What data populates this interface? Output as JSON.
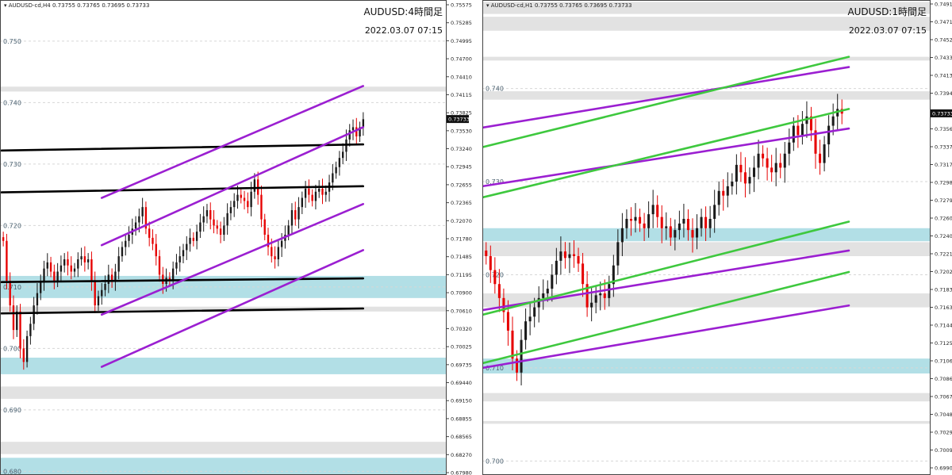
{
  "chart_data": [
    {
      "type": "candlestick",
      "symbol_header": "AUDUSD-cd,H4",
      "ohlc_text": "0.73755 0.73765 0.73695 0.73733",
      "title": "AUDUSD:4時間足",
      "timestamp": "2022.03.07 07:15",
      "current_price": "0.73733",
      "ylim": [
        0.6794,
        0.7567
      ],
      "axis_ticks": [
        "0.75575",
        "0.75285",
        "0.74995",
        "0.74700",
        "0.74410",
        "0.74115",
        "0.73825",
        "0.73530",
        "0.73240",
        "0.72945",
        "0.72655",
        "0.72365",
        "0.72070",
        "0.71780",
        "0.71485",
        "0.71195",
        "0.70900",
        "0.70610",
        "0.70320",
        "0.70025",
        "0.69735",
        "0.69440",
        "0.69150",
        "0.68855",
        "0.68565",
        "0.68270",
        "0.67980"
      ],
      "level_labels": [
        "0.750",
        "0.740",
        "0.730",
        "0.720",
        "0.710",
        "0.700",
        "0.690",
        "0.680"
      ],
      "levels": [
        0.75,
        0.74,
        0.73,
        0.72,
        0.71,
        0.7,
        0.69,
        0.68
      ],
      "zones": [
        {
          "from": 0.7426,
          "to": 0.7418,
          "color": "gray"
        },
        {
          "from": 0.7118,
          "to": 0.7082,
          "color": "cyan"
        },
        {
          "from": 0.7068,
          "to": 0.706,
          "color": "gray"
        },
        {
          "from": 0.6985,
          "to": 0.6958,
          "color": "cyan"
        },
        {
          "from": 0.6938,
          "to": 0.6918,
          "color": "gray"
        },
        {
          "from": 0.6848,
          "to": 0.6828,
          "color": "gray"
        },
        {
          "from": 0.6822,
          "to": 0.679,
          "color": "cyan"
        }
      ],
      "trendlines": [
        {
          "color": "black",
          "points": [
            [
              0,
              0.7322
            ],
            [
              130,
              0.7332
            ]
          ]
        },
        {
          "color": "black",
          "points": [
            [
              0,
              0.7254
            ],
            [
              130,
              0.7264
            ]
          ]
        },
        {
          "color": "black",
          "points": [
            [
              0,
              0.7108
            ],
            [
              130,
              0.7114
            ]
          ]
        },
        {
          "color": "black",
          "points": [
            [
              0,
              0.7057
            ],
            [
              130,
              0.7065
            ]
          ]
        },
        {
          "color": "purple",
          "points": [
            [
              36,
              0.7245
            ],
            [
              130,
              0.7427
            ]
          ]
        },
        {
          "color": "purple",
          "points": [
            [
              36,
              0.7168
            ],
            [
              130,
              0.736
            ]
          ]
        },
        {
          "color": "purple",
          "points": [
            [
              36,
              0.7055
            ],
            [
              130,
              0.7235
            ]
          ]
        },
        {
          "color": "purple",
          "points": [
            [
              36,
              0.697
            ],
            [
              130,
              0.716
            ]
          ]
        }
      ],
      "price_path": [
        0.7175,
        0.711,
        0.707,
        0.703,
        0.706,
        0.7,
        0.6978,
        0.702,
        0.704,
        0.707,
        0.709,
        0.711,
        0.713,
        0.714,
        0.7125,
        0.711,
        0.7125,
        0.7135,
        0.7145,
        0.7135,
        0.7125,
        0.713,
        0.7145,
        0.715,
        0.714,
        0.7145,
        0.711,
        0.707,
        0.7085,
        0.7095,
        0.7105,
        0.712,
        0.711,
        0.7125,
        0.715,
        0.7165,
        0.7175,
        0.7185,
        0.7195,
        0.7205,
        0.7215,
        0.723,
        0.7195,
        0.718,
        0.717,
        0.715,
        0.712,
        0.7105,
        0.7115,
        0.711,
        0.713,
        0.714,
        0.715,
        0.716,
        0.717,
        0.718,
        0.7175,
        0.719,
        0.7205,
        0.7215,
        0.7225,
        0.721,
        0.72,
        0.7195,
        0.7185,
        0.72,
        0.722,
        0.723,
        0.724,
        0.725,
        0.7245,
        0.724,
        0.723,
        0.7255,
        0.7275,
        0.725,
        0.721,
        0.7185,
        0.7165,
        0.715,
        0.7145,
        0.7165,
        0.7175,
        0.7185,
        0.72,
        0.7225,
        0.721,
        0.723,
        0.7245,
        0.726,
        0.725,
        0.724,
        0.7255,
        0.726,
        0.725,
        0.7255,
        0.727,
        0.7285,
        0.7295,
        0.731,
        0.732,
        0.734,
        0.7355,
        0.736,
        0.7345,
        0.736,
        0.7373
      ]
    },
    {
      "type": "candlestick",
      "symbol_header": "AUDUSD-cd,H1",
      "ohlc_text": "0.73755 0.73765 0.73695 0.73733",
      "title": "AUDUSD:1時間足",
      "timestamp": "2022.03.07 07:15",
      "current_price": "0.73733",
      "ylim": [
        0.6985,
        0.7495
      ],
      "axis_ticks": [
        "0.74910",
        "0.74715",
        "0.74525",
        "0.74330",
        "0.74135",
        "0.73945",
        "0.73750",
        "0.73560",
        "0.73370",
        "0.73175",
        "0.72985",
        "0.72790",
        "0.72600",
        "0.72405",
        "0.72215",
        "0.72020",
        "0.71830",
        "0.71635",
        "0.71445",
        "0.71250",
        "0.71060",
        "0.70865",
        "0.70675",
        "0.70480",
        "0.70290",
        "0.70095",
        "0.69900"
      ],
      "level_labels": [
        "0.740",
        "0.730",
        "0.720",
        "0.710",
        "0.700"
      ],
      "levels": [
        0.74,
        0.73,
        0.72,
        0.71,
        0.7
      ],
      "zones": [
        {
          "from": 0.7493,
          "to": 0.748,
          "color": "gray"
        },
        {
          "from": 0.7477,
          "to": 0.7462,
          "color": "gray"
        },
        {
          "from": 0.7434,
          "to": 0.743,
          "color": "gray"
        },
        {
          "from": 0.7397,
          "to": 0.7388,
          "color": "gray"
        },
        {
          "from": 0.725,
          "to": 0.7236,
          "color": "cyan"
        },
        {
          "from": 0.7235,
          "to": 0.722,
          "color": "gray"
        },
        {
          "from": 0.718,
          "to": 0.7165,
          "color": "gray"
        },
        {
          "from": 0.711,
          "to": 0.7094,
          "color": "cyan"
        },
        {
          "from": 0.7073,
          "to": 0.7064,
          "color": "gray"
        },
        {
          "from": 0.7043,
          "to": 0.704,
          "color": "gray"
        }
      ],
      "trendlines": [
        {
          "color": "purple",
          "points": [
            [
              0,
              0.7358
            ],
            [
              1,
              0.7423
            ]
          ]
        },
        {
          "color": "purple",
          "points": [
            [
              0,
              0.7295
            ],
            [
              1,
              0.7357
            ]
          ]
        },
        {
          "color": "purple",
          "points": [
            [
              0,
              0.7162
            ],
            [
              1,
              0.7226
            ]
          ]
        },
        {
          "color": "purple",
          "points": [
            [
              0,
              0.71
            ],
            [
              1,
              0.7167
            ]
          ]
        },
        {
          "color": "green",
          "points": [
            [
              0,
              0.7337
            ],
            [
              1,
              0.7434
            ]
          ]
        },
        {
          "color": "green",
          "points": [
            [
              0,
              0.7283
            ],
            [
              1,
              0.7378
            ]
          ]
        },
        {
          "color": "green",
          "points": [
            [
              0,
              0.7157
            ],
            [
              1,
              0.7257
            ]
          ]
        },
        {
          "color": "green",
          "points": [
            [
              0,
              0.7105
            ],
            [
              1,
              0.7203
            ]
          ]
        }
      ],
      "price_path": [
        0.722,
        0.7205,
        0.719,
        0.7175,
        0.716,
        0.714,
        0.711,
        0.7095,
        0.713,
        0.715,
        0.7155,
        0.7165,
        0.7175,
        0.718,
        0.7185,
        0.72,
        0.7215,
        0.7225,
        0.7218,
        0.7222,
        0.722,
        0.7212,
        0.719,
        0.7165,
        0.717,
        0.7178,
        0.718,
        0.7175,
        0.719,
        0.721,
        0.7235,
        0.725,
        0.726,
        0.7258,
        0.7262,
        0.7255,
        0.725,
        0.7265,
        0.7275,
        0.7262,
        0.725,
        0.7252,
        0.724,
        0.7248,
        0.7255,
        0.726,
        0.7248,
        0.724,
        0.725,
        0.7262,
        0.725,
        0.726,
        0.7275,
        0.729,
        0.7285,
        0.7295,
        0.73,
        0.7318,
        0.731,
        0.7298,
        0.7305,
        0.7315,
        0.733,
        0.7325,
        0.7315,
        0.731,
        0.732,
        0.7315,
        0.733,
        0.7342,
        0.736,
        0.735,
        0.7362,
        0.737,
        0.7355,
        0.733,
        0.732,
        0.734,
        0.736,
        0.737,
        0.7378,
        0.7373
      ]
    }
  ]
}
